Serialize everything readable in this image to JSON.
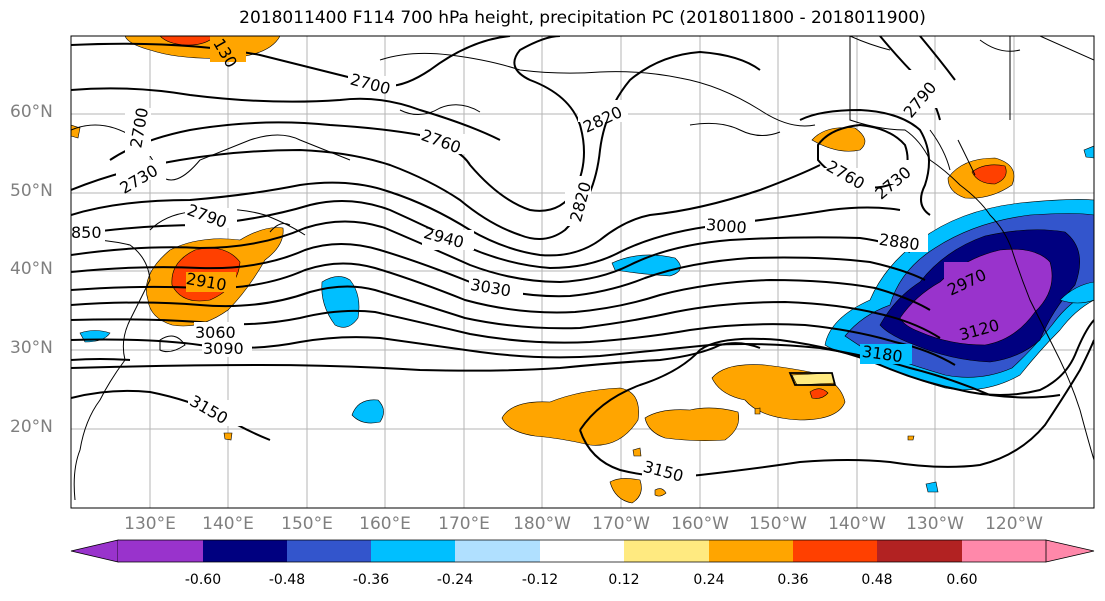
{
  "title": "2018011400 F114 700 hPa height, precipitation PC (2018011800 - 2018011900)",
  "lat_labels": [
    "60°N",
    "50°N",
    "40°N",
    "30°N",
    "20°N"
  ],
  "lon_labels": [
    "130°E",
    "140°E",
    "150°E",
    "160°E",
    "170°E",
    "180°W",
    "170°W",
    "160°W",
    "150°W",
    "140°W",
    "130°W",
    "120°W"
  ],
  "colorbar": {
    "colors": [
      "#9933cc",
      "#000080",
      "#3355cc",
      "#00bfff",
      "#b0e0ff",
      "#ffffff",
      "#ffea80",
      "#ffa500",
      "#ff4000",
      "#b22222",
      "#ff88aa"
    ],
    "tick_labels": [
      "-0.60",
      "-0.48",
      "-0.36",
      "-0.24",
      "-0.12",
      "0.12",
      "0.24",
      "0.36",
      "0.48",
      "0.60"
    ]
  },
  "contour_labels": [
    "2700",
    "2700",
    "2730",
    "130",
    "2820",
    "2760",
    "2790",
    "2820",
    "2730",
    "2760",
    "2790",
    "850",
    "2940",
    "3000",
    "2880",
    "2910",
    "3030",
    "2970",
    "3060",
    "3120",
    "3090",
    "3180",
    "3150",
    "3150"
  ]
}
